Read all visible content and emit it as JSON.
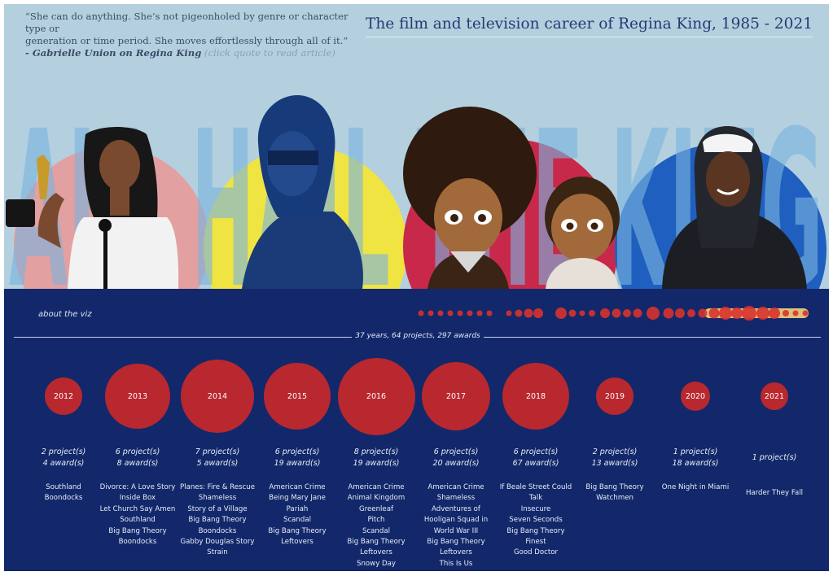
{
  "header": {
    "quote_line1": "“She can do anything. She’s not pigeonholed by genre or character type or",
    "quote_line2": "generation or time period. She moves effortlessly through all of it.”",
    "quote_source": "- Gabrielle Union on Regina King",
    "quote_link": "(click quote to read article)",
    "title": "The film and television career of Regina King, 1985 - 2021"
  },
  "banner": {
    "text": "ALL HAIL THE KING"
  },
  "panel": {
    "about_link": "about the viz",
    "summary": "37 years, 64 projects, 297 awards"
  },
  "colors": {
    "background": "#12286a",
    "bubble": "#b8282e",
    "hero_bg": "#b4d0de",
    "banner_text": "#7bb3de"
  },
  "chart_data": {
    "type": "bubble",
    "years": [
      {
        "year": "2012",
        "projects": "2 project(s)",
        "awards": "4 award(s)",
        "award_count": 4,
        "titles": [
          "Southland",
          "Boondocks"
        ]
      },
      {
        "year": "2013",
        "projects": "6 project(s)",
        "awards": "8 award(s)",
        "award_count": 8,
        "titles": [
          "Divorce: A Love Story",
          "Inside Box",
          "Let Church Say Amen",
          "Southland",
          "Big Bang Theory",
          "Boondocks"
        ]
      },
      {
        "year": "2014",
        "projects": "7 project(s)",
        "awards": "5 award(s)",
        "award_count": 5,
        "titles": [
          "Planes: Fire & Rescue",
          "Shameless",
          "Story of a Village",
          "Big Bang Theory",
          "Boondocks",
          "Gabby Douglas Story",
          "Strain"
        ]
      },
      {
        "year": "2015",
        "projects": "6 project(s)",
        "awards": "19 award(s)",
        "award_count": 19,
        "titles": [
          "American Crime",
          "Being Mary Jane",
          "Pariah",
          "Scandal",
          "Big Bang Theory",
          "Leftovers"
        ]
      },
      {
        "year": "2016",
        "projects": "8 project(s)",
        "awards": "19 award(s)",
        "award_count": 19,
        "titles": [
          "American Crime",
          "Animal Kingdom",
          "Greenleaf",
          "Pitch",
          "Scandal",
          "Big Bang Theory",
          "Leftovers",
          "Snowy Day"
        ]
      },
      {
        "year": "2017",
        "projects": "6 project(s)",
        "awards": "20 award(s)",
        "award_count": 20,
        "titles": [
          "American Crime",
          "Shameless",
          "Adventures of",
          "Hooligan Squad in",
          "World War III",
          "Big Bang Theory",
          "Leftovers",
          "This Is Us"
        ]
      },
      {
        "year": "2018",
        "projects": "6 project(s)",
        "awards": "67 award(s)",
        "award_count": 67,
        "titles": [
          "If Beale Street Could",
          "Talk",
          "Insecure",
          "Seven Seconds",
          "Big Bang Theory",
          "Finest",
          "Good Doctor"
        ]
      },
      {
        "year": "2019",
        "projects": "2 project(s)",
        "awards": "13 award(s)",
        "award_count": 13,
        "titles": [
          "Big Bang Theory",
          "Watchmen"
        ]
      },
      {
        "year": "2020",
        "projects": "1 project(s)",
        "awards": "18 award(s)",
        "award_count": 18,
        "titles": [
          "One Night in Miami"
        ]
      },
      {
        "year": "2021",
        "projects": "1 project(s)",
        "awards": "",
        "award_count": 0,
        "titles": [
          "Harder They Fall"
        ]
      }
    ]
  }
}
